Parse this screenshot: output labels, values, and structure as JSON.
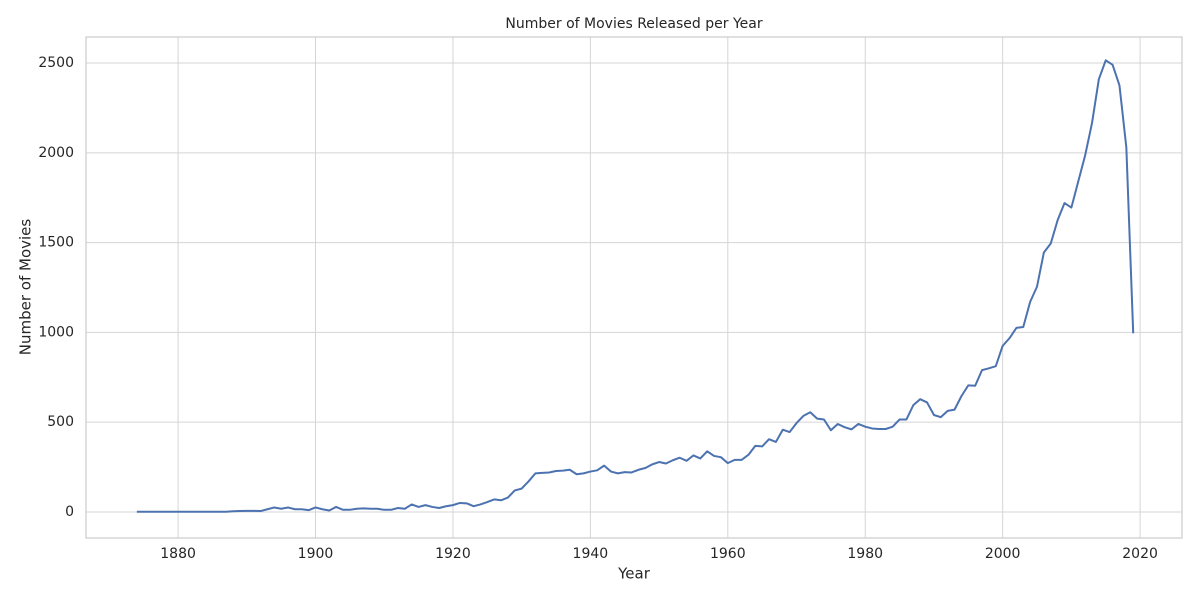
{
  "chart_data": {
    "type": "line",
    "title": "Number of Movies Released per Year",
    "xlabel": "Year",
    "ylabel": "Number of Movies",
    "x": [
      1874,
      1875,
      1876,
      1877,
      1878,
      1879,
      1880,
      1881,
      1882,
      1883,
      1884,
      1885,
      1886,
      1887,
      1888,
      1889,
      1890,
      1891,
      1892,
      1893,
      1894,
      1895,
      1896,
      1897,
      1898,
      1899,
      1900,
      1901,
      1902,
      1903,
      1904,
      1905,
      1906,
      1907,
      1908,
      1909,
      1910,
      1911,
      1912,
      1913,
      1914,
      1915,
      1916,
      1917,
      1918,
      1919,
      1920,
      1921,
      1922,
      1923,
      1924,
      1925,
      1926,
      1927,
      1928,
      1929,
      1930,
      1931,
      1932,
      1933,
      1934,
      1935,
      1936,
      1937,
      1938,
      1939,
      1940,
      1941,
      1942,
      1943,
      1944,
      1945,
      1946,
      1947,
      1948,
      1949,
      1950,
      1951,
      1952,
      1953,
      1954,
      1955,
      1956,
      1957,
      1958,
      1959,
      1960,
      1961,
      1962,
      1963,
      1964,
      1965,
      1966,
      1967,
      1968,
      1969,
      1970,
      1971,
      1972,
      1973,
      1974,
      1975,
      1976,
      1977,
      1978,
      1979,
      1980,
      1981,
      1982,
      1983,
      1984,
      1985,
      1986,
      1987,
      1988,
      1989,
      1990,
      1991,
      1992,
      1993,
      1994,
      1995,
      1996,
      1997,
      1998,
      1999,
      2000,
      2001,
      2002,
      2003,
      2004,
      2005,
      2006,
      2007,
      2008,
      2009,
      2010,
      2011,
      2012,
      2013,
      2014,
      2015,
      2016,
      2017,
      2018,
      2019
    ],
    "series": [
      {
        "color": "#4c72b0",
        "values": [
          1,
          1,
          1,
          1,
          1,
          1,
          1,
          1,
          1,
          1,
          1,
          1,
          1,
          1,
          4,
          5,
          6,
          6,
          5,
          15,
          25,
          18,
          25,
          15,
          15,
          10,
          25,
          15,
          8,
          28,
          12,
          12,
          18,
          20,
          18,
          18,
          12,
          12,
          22,
          18,
          42,
          28,
          38,
          28,
          22,
          32,
          38,
          50,
          48,
          32,
          42,
          55,
          70,
          65,
          80,
          120,
          130,
          170,
          215,
          218,
          220,
          228,
          230,
          235,
          210,
          215,
          225,
          232,
          258,
          225,
          215,
          222,
          220,
          235,
          245,
          265,
          278,
          270,
          288,
          302,
          285,
          315,
          298,
          338,
          312,
          305,
          272,
          290,
          290,
          318,
          368,
          365,
          405,
          390,
          458,
          445,
          495,
          535,
          555,
          520,
          515,
          455,
          490,
          472,
          460,
          490,
          475,
          465,
          462,
          462,
          475,
          515,
          515,
          595,
          628,
          610,
          540,
          528,
          563,
          570,
          645,
          705,
          703,
          790,
          800,
          812,
          925,
          968,
          1025,
          1030,
          1170,
          1255,
          1445,
          1495,
          1625,
          1720,
          1695,
          1840,
          1985,
          2165,
          2410,
          2515,
          2490,
          2375,
          2030,
          995
        ]
      }
    ],
    "xlim": [
      1866.6,
      2026.1
    ],
    "xticks": [
      1880,
      1900,
      1920,
      1940,
      1960,
      1980,
      2000,
      2020
    ],
    "ylim": [
      -145,
      2645
    ],
    "yticks": [
      0,
      500,
      1000,
      1500,
      2000,
      2500
    ],
    "grid": true
  }
}
